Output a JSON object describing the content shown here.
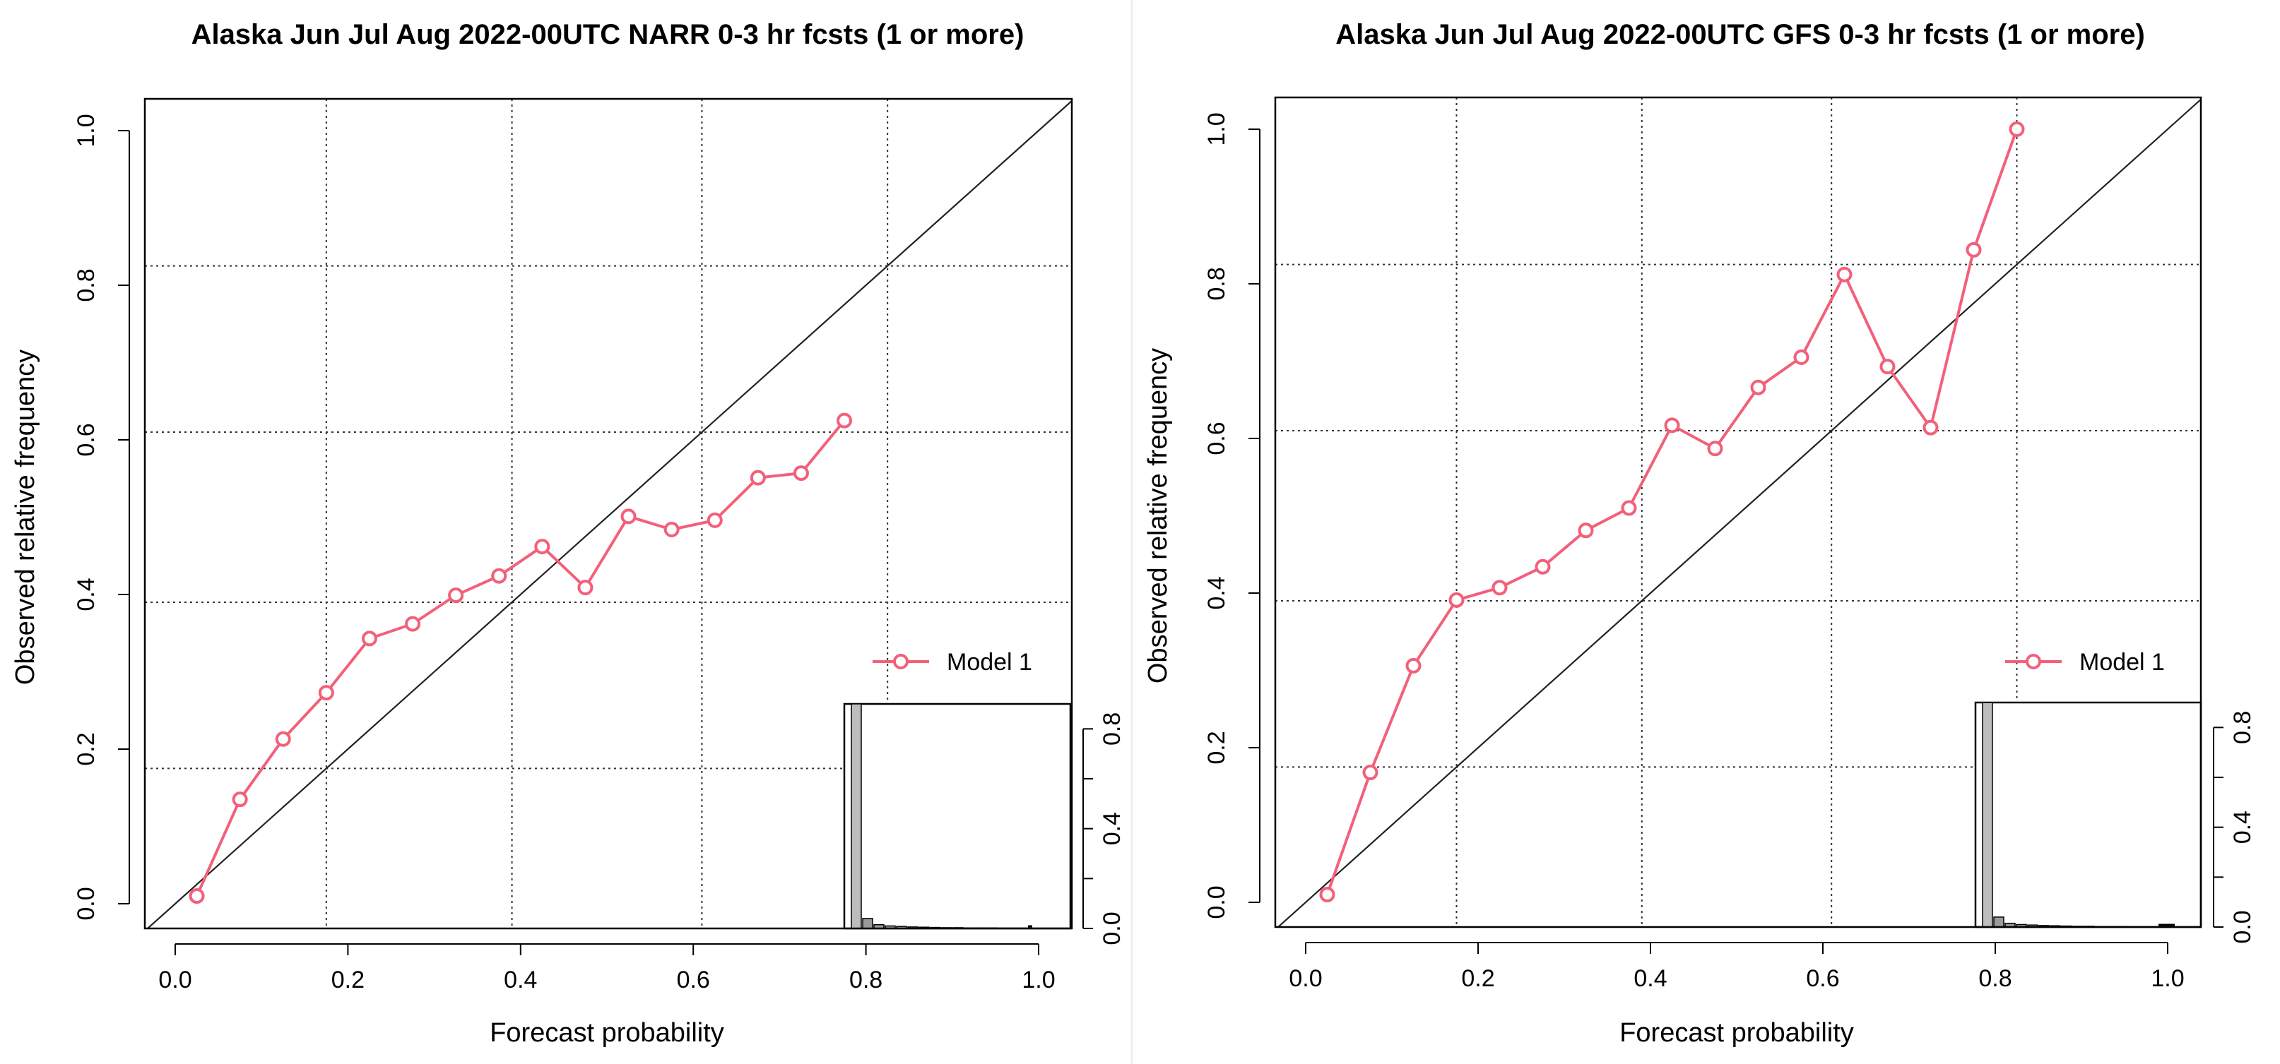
{
  "chart_data": [
    {
      "type": "line",
      "title": "Alaska Jun Jul Aug 2022-00UTC NARR 0-3 hr fcsts (1 or more)",
      "xlabel": "Forecast probability",
      "ylabel": "Observed relative frequency",
      "xlim": [
        0,
        1
      ],
      "ylim": [
        0,
        1
      ],
      "x_ticks": [
        "0.0",
        "0.2",
        "0.4",
        "0.6",
        "0.8",
        "1.0"
      ],
      "y_ticks": [
        "0.0",
        "0.2",
        "0.4",
        "0.6",
        "0.8",
        "1.0"
      ],
      "grid": "dotted (sample climatology + 0.2 intervals)",
      "reference_line": "diagonal (perfect reliability)",
      "legend": "right",
      "series": [
        {
          "name": "Model 1",
          "color": "#f2607a",
          "x": [
            0.025,
            0.075,
            0.125,
            0.175,
            0.225,
            0.275,
            0.325,
            0.375,
            0.425,
            0.475,
            0.525,
            0.575,
            0.625,
            0.675,
            0.725,
            0.775
          ],
          "y": [
            0.01,
            0.135,
            0.213,
            0.273,
            0.343,
            0.362,
            0.399,
            0.424,
            0.462,
            0.409,
            0.501,
            0.484,
            0.496,
            0.551,
            0.557,
            0.625
          ]
        }
      ],
      "inset_histogram": {
        "ylim": [
          0,
          0.9
        ],
        "y_ticks": [
          "0.0",
          "0.4",
          "0.8"
        ],
        "bins": [
          0.025,
          0.075,
          0.125,
          0.175,
          0.225,
          0.275,
          0.325,
          0.375,
          0.425,
          0.475,
          0.525,
          0.575,
          0.625,
          0.675,
          0.725,
          0.775
        ],
        "frequencies": [
          0.9,
          0.04,
          0.015,
          0.01,
          0.008,
          0.006,
          0.005,
          0.004,
          0.003,
          0.003,
          0.002,
          0.002,
          0.002,
          0.001,
          0.001,
          0.001
        ]
      }
    },
    {
      "type": "line",
      "title": "Alaska Jun Jul Aug 2022-00UTC GFS 0-3 hr fcsts (1 or more)",
      "xlabel": "Forecast probability",
      "ylabel": "Observed relative frequency",
      "xlim": [
        0,
        1
      ],
      "ylim": [
        0,
        1
      ],
      "x_ticks": [
        "0.0",
        "0.2",
        "0.4",
        "0.6",
        "0.8",
        "1.0"
      ],
      "y_ticks": [
        "0.0",
        "0.2",
        "0.4",
        "0.6",
        "0.8",
        "1.0"
      ],
      "grid": "dotted (sample climatology + 0.2 intervals)",
      "reference_line": "diagonal (perfect reliability)",
      "legend": "right",
      "series": [
        {
          "name": "Model 1",
          "color": "#f2607a",
          "x": [
            0.025,
            0.075,
            0.125,
            0.175,
            0.225,
            0.275,
            0.325,
            0.375,
            0.425,
            0.475,
            0.525,
            0.575,
            0.625,
            0.675,
            0.725,
            0.775,
            0.825
          ],
          "y": [
            0.01,
            0.168,
            0.306,
            0.391,
            0.407,
            0.434,
            0.481,
            0.51,
            0.617,
            0.587,
            0.666,
            0.705,
            0.812,
            0.693,
            0.614,
            0.844,
            1.0
          ]
        }
      ],
      "inset_histogram": {
        "ylim": [
          0,
          0.9
        ],
        "y_ticks": [
          "0.0",
          "0.4",
          "0.8"
        ],
        "bins": [
          0.025,
          0.075,
          0.125,
          0.175,
          0.225,
          0.275,
          0.325,
          0.375,
          0.425,
          0.475,
          0.525,
          0.575,
          0.625,
          0.675,
          0.725,
          0.775,
          0.825
        ],
        "frequencies": [
          0.9,
          0.04,
          0.015,
          0.01,
          0.008,
          0.006,
          0.005,
          0.004,
          0.003,
          0.003,
          0.002,
          0.002,
          0.002,
          0.001,
          0.001,
          0.001,
          0.001
        ]
      }
    }
  ]
}
